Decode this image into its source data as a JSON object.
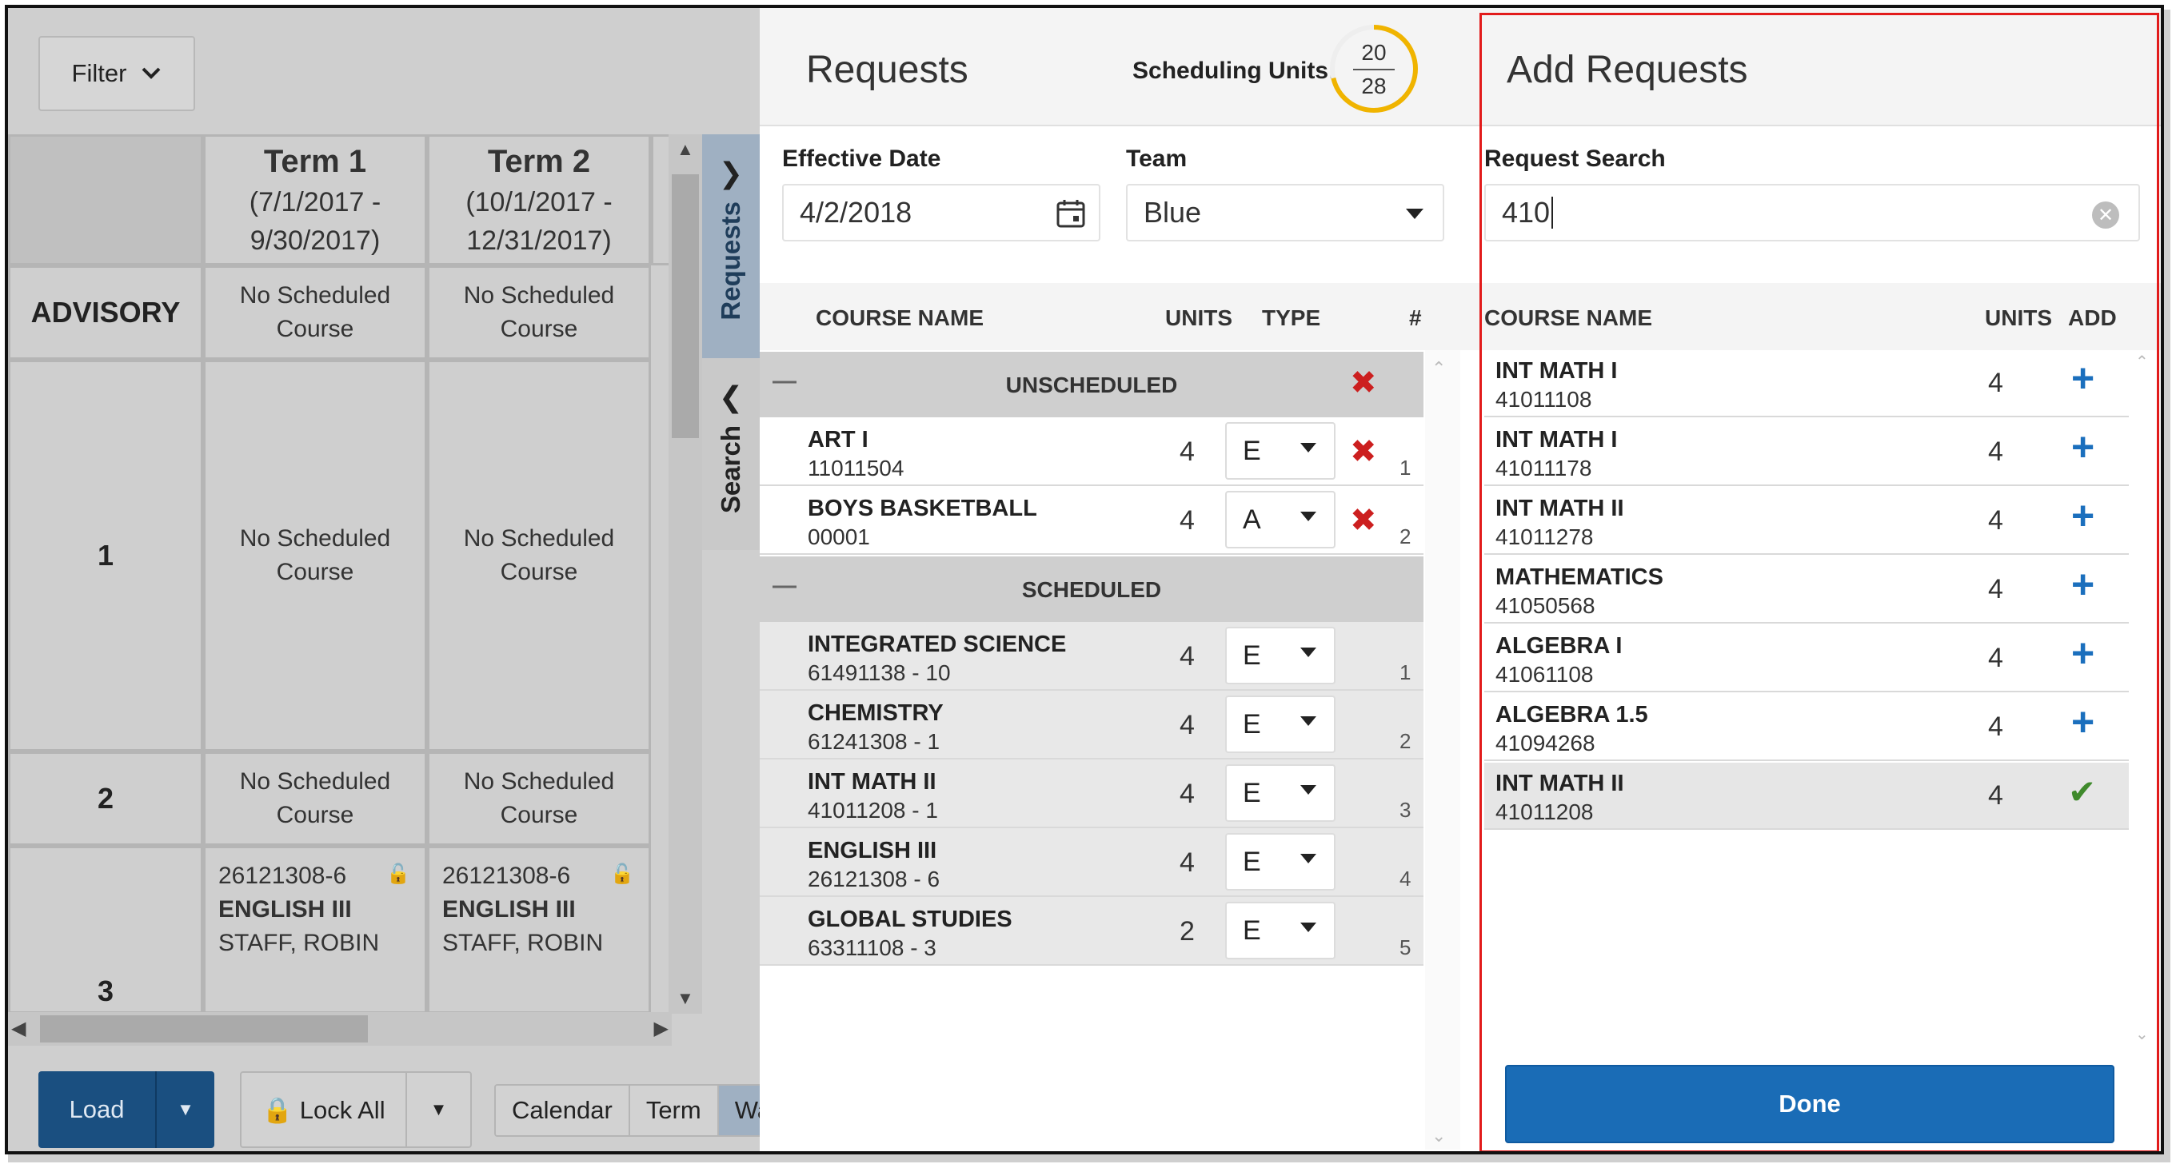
{
  "left": {
    "filter_label": "Filter",
    "terms": [
      {
        "name": "Term 1",
        "start": "(7/1/2017 -",
        "end": "9/30/2017)"
      },
      {
        "name": "Term 2",
        "start": "(10/1/2017 -",
        "end": "12/31/2017)"
      }
    ],
    "rows": [
      {
        "label": "ADVISORY",
        "cells": [
          "No Scheduled Course",
          "No Scheduled Course"
        ]
      },
      {
        "label": "1",
        "cells": [
          "No Scheduled Course",
          "No Scheduled Course"
        ]
      },
      {
        "label": "2",
        "cells": [
          "No Scheduled Course",
          "No Scheduled Course"
        ]
      },
      {
        "label": "3",
        "cells": [
          {
            "code": "26121308-6",
            "course": "ENGLISH III",
            "teacher": "STAFF, ROBIN"
          },
          {
            "code": "26121308-6",
            "course": "ENGLISH III",
            "teacher": "STAFF, ROBIN"
          }
        ]
      }
    ],
    "side_tabs": {
      "requests": "Requests",
      "search": "Search"
    },
    "bottom": {
      "load": "Load",
      "lock_all": "Lock All",
      "views": [
        "Calendar",
        "Term",
        "Wa"
      ]
    }
  },
  "requests": {
    "title": "Requests",
    "scheduling_units_label": "Scheduling Units:",
    "units_scheduled": "20",
    "units_total": "28",
    "effective_date_label": "Effective Date",
    "effective_date": "4/2/2018",
    "team_label": "Team",
    "team": "Blue",
    "columns": {
      "course_name": "COURSE NAME",
      "units": "UNITS",
      "type": "TYPE",
      "num": "#"
    },
    "unscheduled_label": "UNSCHEDULED",
    "scheduled_label": "SCHEDULED",
    "unscheduled": [
      {
        "name": "ART I",
        "code": "11011504",
        "units": "4",
        "type": "E",
        "num": "1"
      },
      {
        "name": "BOYS BASKETBALL",
        "code": "00001",
        "units": "4",
        "type": "A",
        "num": "2"
      }
    ],
    "scheduled": [
      {
        "name": "INTEGRATED SCIENCE",
        "code": "61491138 - 10",
        "units": "4",
        "type": "E",
        "num": "1"
      },
      {
        "name": "CHEMISTRY",
        "code": "61241308 - 1",
        "units": "4",
        "type": "E",
        "num": "2"
      },
      {
        "name": "INT MATH II",
        "code": "41011208 - 1",
        "units": "4",
        "type": "E",
        "num": "3"
      },
      {
        "name": "ENGLISH III",
        "code": "26121308 - 6",
        "units": "4",
        "type": "E",
        "num": "4"
      },
      {
        "name": "GLOBAL STUDIES",
        "code": "63311108 - 3",
        "units": "2",
        "type": "E",
        "num": "5"
      }
    ]
  },
  "add_requests": {
    "title": "Add Requests",
    "search_label": "Request Search",
    "search_value": "410",
    "columns": {
      "course_name": "COURSE NAME",
      "units": "UNITS",
      "add": "ADD"
    },
    "results": [
      {
        "name": "INT MATH I",
        "code": "41011108",
        "units": "4",
        "added": false
      },
      {
        "name": "INT MATH I",
        "code": "41011178",
        "units": "4",
        "added": false
      },
      {
        "name": "INT MATH II",
        "code": "41011278",
        "units": "4",
        "added": false
      },
      {
        "name": "MATHEMATICS",
        "code": "41050568",
        "units": "4",
        "added": false
      },
      {
        "name": "ALGEBRA I",
        "code": "41061108",
        "units": "4",
        "added": false
      },
      {
        "name": "ALGEBRA 1.5",
        "code": "41094268",
        "units": "4",
        "added": false
      },
      {
        "name": "INT MATH II",
        "code": "41011208",
        "units": "4",
        "added": true
      }
    ],
    "done_label": "Done"
  },
  "colors": {
    "accent": "#1a6cb6",
    "highlight": "#e21b1b",
    "gauge": "#f0b400"
  }
}
